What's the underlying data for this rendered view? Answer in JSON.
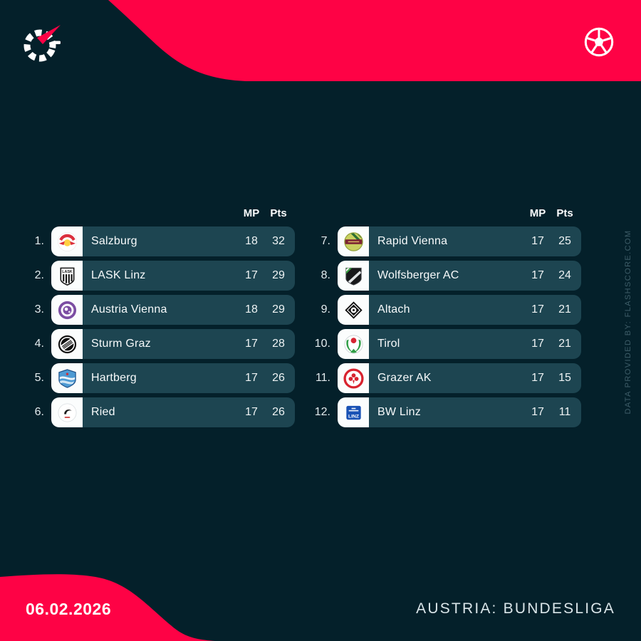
{
  "theme": {
    "accent": "#fe0245",
    "background": "#04202a",
    "row_bg": "#1d4551",
    "tile_bg": "#fbfdfd",
    "credit_color": "#3e5d68"
  },
  "header": {
    "brand_icon": "flashscore-spinner-logo",
    "sport_icon": "football-icon"
  },
  "columns": {
    "mp": "MP",
    "pts": "Pts"
  },
  "standings": {
    "left_rows": [
      {
        "pos": "1.",
        "team": "Salzburg",
        "mp": "18",
        "pts": "32",
        "logo": "salzburg-logo"
      },
      {
        "pos": "2.",
        "team": "LASK Linz",
        "mp": "17",
        "pts": "29",
        "logo": "lask-linz-logo"
      },
      {
        "pos": "3.",
        "team": "Austria Vienna",
        "mp": "18",
        "pts": "29",
        "logo": "austria-vienna-logo"
      },
      {
        "pos": "4.",
        "team": "Sturm Graz",
        "mp": "17",
        "pts": "28",
        "logo": "sturm-graz-logo"
      },
      {
        "pos": "5.",
        "team": "Hartberg",
        "mp": "17",
        "pts": "26",
        "logo": "hartberg-logo"
      },
      {
        "pos": "6.",
        "team": "Ried",
        "mp": "17",
        "pts": "26",
        "logo": "ried-logo"
      }
    ],
    "right_rows": [
      {
        "pos": "7.",
        "team": "Rapid Vienna",
        "mp": "17",
        "pts": "25",
        "logo": "rapid-vienna-logo"
      },
      {
        "pos": "8.",
        "team": "Wolfsberger AC",
        "mp": "17",
        "pts": "24",
        "logo": "wolfsberger-ac-logo"
      },
      {
        "pos": "9.",
        "team": "Altach",
        "mp": "17",
        "pts": "21",
        "logo": "altach-logo"
      },
      {
        "pos": "10.",
        "team": "Tirol",
        "mp": "17",
        "pts": "21",
        "logo": "tirol-logo"
      },
      {
        "pos": "11.",
        "team": "Grazer AK",
        "mp": "17",
        "pts": "15",
        "logo": "grazer-ak-logo"
      },
      {
        "pos": "12.",
        "team": "BW Linz",
        "mp": "17",
        "pts": "11",
        "logo": "bw-linz-logo"
      }
    ]
  },
  "sidebar": {
    "credit": "DATA PROVIDED BY: FLASHSCORE.COM"
  },
  "footer": {
    "date": "06.02.2026",
    "league": "AUSTRIA: BUNDESLIGA"
  }
}
